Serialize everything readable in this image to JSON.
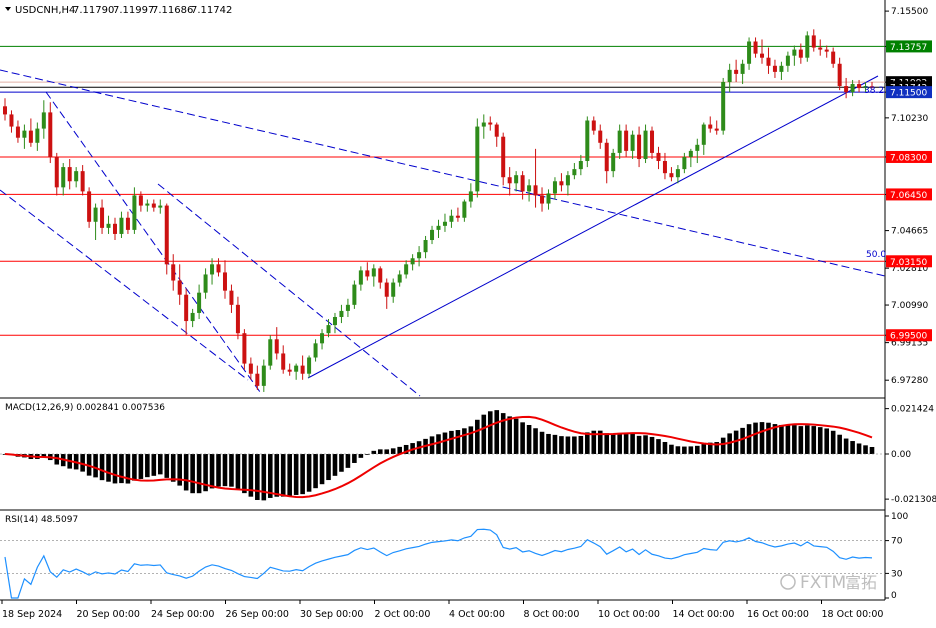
{
  "chart_data": {
    "type": "candlestick",
    "symbol_header": "USDCNH,H4",
    "ohlc_header": [
      "7.11790",
      "7.11997",
      "7.11686",
      "7.11742"
    ],
    "price_axis": {
      "range": [
        6.965,
        7.159
      ],
      "ticks": [
        "7.15500",
        "7.13757",
        "7.11992",
        "7.11500",
        "7.10230",
        "7.08300",
        "7.06450",
        "7.04665",
        "7.03150",
        "7.02810",
        "7.00990",
        "6.99500",
        "6.99135",
        "6.97280"
      ]
    },
    "price_lines": [
      {
        "label": "7.13757",
        "value": 7.13757,
        "color": "#008000",
        "tag_fill": "#008000"
      },
      {
        "label": "7.11992",
        "value": 7.11992,
        "color": "#e0b0a8",
        "tag_fill": "#000000"
      },
      {
        "label": "7.11742",
        "value": 7.11742,
        "color": "#000000",
        "tag_fill": "#000000"
      },
      {
        "label": "7.11500",
        "value": 7.115,
        "color": "#0000cc",
        "tag_fill": "#1030c0"
      },
      {
        "label": "7.08300",
        "value": 7.083,
        "color": "#ff0000",
        "tag_fill": "#ff0000"
      },
      {
        "label": "7.06450",
        "value": 7.0645,
        "color": "#ff0000",
        "tag_fill": "#ff0000"
      },
      {
        "label": "7.03150",
        "value": 7.0315,
        "color": "#ff0000",
        "tag_fill": "#ff0000"
      },
      {
        "label": "6.99500",
        "value": 6.995,
        "color": "#ff0000",
        "tag_fill": "#ff0000"
      }
    ],
    "fib_labels": [
      "38.2",
      "50.0"
    ],
    "time_labels": [
      "18 Sep 2024",
      "20 Sep 00:00",
      "24 Sep 00:00",
      "26 Sep 00:00",
      "30 Sep 00:00",
      "2 Oct 00:00",
      "4 Oct 00:00",
      "8 Oct 00:00",
      "10 Oct 00:00",
      "14 Oct 00:00",
      "16 Oct 00:00",
      "18 Oct 00:00"
    ],
    "candles": [
      {
        "o": 7.108,
        "h": 7.112,
        "l": 7.101,
        "c": 7.104
      },
      {
        "o": 7.104,
        "h": 7.106,
        "l": 7.095,
        "c": 7.098
      },
      {
        "o": 7.098,
        "h": 7.101,
        "l": 7.09,
        "c": 7.0925
      },
      {
        "o": 7.0925,
        "h": 7.099,
        "l": 7.087,
        "c": 7.096
      },
      {
        "o": 7.096,
        "h": 7.102,
        "l": 7.088,
        "c": 7.09
      },
      {
        "o": 7.09,
        "h": 7.1,
        "l": 7.086,
        "c": 7.097
      },
      {
        "o": 7.097,
        "h": 7.111,
        "l": 7.092,
        "c": 7.105
      },
      {
        "o": 7.105,
        "h": 7.11,
        "l": 7.08,
        "c": 7.083
      },
      {
        "o": 7.083,
        "h": 7.085,
        "l": 7.064,
        "c": 7.068
      },
      {
        "o": 7.068,
        "h": 7.08,
        "l": 7.064,
        "c": 7.078
      },
      {
        "o": 7.078,
        "h": 7.082,
        "l": 7.067,
        "c": 7.071
      },
      {
        "o": 7.071,
        "h": 7.078,
        "l": 7.068,
        "c": 7.076
      },
      {
        "o": 7.076,
        "h": 7.079,
        "l": 7.064,
        "c": 7.066
      },
      {
        "o": 7.066,
        "h": 7.068,
        "l": 7.048,
        "c": 7.051
      },
      {
        "o": 7.051,
        "h": 7.06,
        "l": 7.042,
        "c": 7.058
      },
      {
        "o": 7.058,
        "h": 7.062,
        "l": 7.045,
        "c": 7.048
      },
      {
        "o": 7.048,
        "h": 7.054,
        "l": 7.045,
        "c": 7.05
      },
      {
        "o": 7.05,
        "h": 7.053,
        "l": 7.042,
        "c": 7.045
      },
      {
        "o": 7.045,
        "h": 7.056,
        "l": 7.043,
        "c": 7.053
      },
      {
        "o": 7.053,
        "h": 7.056,
        "l": 7.045,
        "c": 7.047
      },
      {
        "o": 7.047,
        "h": 7.068,
        "l": 7.045,
        "c": 7.064
      },
      {
        "o": 7.064,
        "h": 7.066,
        "l": 7.056,
        "c": 7.059
      },
      {
        "o": 7.059,
        "h": 7.062,
        "l": 7.056,
        "c": 7.06
      },
      {
        "o": 7.06,
        "h": 7.062,
        "l": 7.056,
        "c": 7.058
      },
      {
        "o": 7.058,
        "h": 7.062,
        "l": 7.055,
        "c": 7.059
      },
      {
        "o": 7.059,
        "h": 7.06,
        "l": 7.025,
        "c": 7.03
      },
      {
        "o": 7.03,
        "h": 7.035,
        "l": 7.017,
        "c": 7.022
      },
      {
        "o": 7.022,
        "h": 7.03,
        "l": 7.01,
        "c": 7.015
      },
      {
        "o": 7.015,
        "h": 7.018,
        "l": 6.995,
        "c": 7.002
      },
      {
        "o": 7.002,
        "h": 7.008,
        "l": 6.999,
        "c": 7.006
      },
      {
        "o": 7.006,
        "h": 7.02,
        "l": 7.003,
        "c": 7.016
      },
      {
        "o": 7.016,
        "h": 7.028,
        "l": 7.013,
        "c": 7.025
      },
      {
        "o": 7.025,
        "h": 7.033,
        "l": 7.02,
        "c": 7.03
      },
      {
        "o": 7.03,
        "h": 7.033,
        "l": 7.024,
        "c": 7.026
      },
      {
        "o": 7.026,
        "h": 7.032,
        "l": 7.013,
        "c": 7.017
      },
      {
        "o": 7.017,
        "h": 7.02,
        "l": 7.006,
        "c": 7.01
      },
      {
        "o": 7.01,
        "h": 7.014,
        "l": 6.993,
        "c": 6.996
      },
      {
        "o": 6.996,
        "h": 6.998,
        "l": 6.978,
        "c": 6.981
      },
      {
        "o": 6.981,
        "h": 6.984,
        "l": 6.973,
        "c": 6.976
      },
      {
        "o": 6.976,
        "h": 6.98,
        "l": 6.968,
        "c": 6.97
      },
      {
        "o": 6.97,
        "h": 6.983,
        "l": 6.967,
        "c": 6.98
      },
      {
        "o": 6.98,
        "h": 6.995,
        "l": 6.978,
        "c": 6.993
      },
      {
        "o": 6.993,
        "h": 6.999,
        "l": 6.983,
        "c": 6.986
      },
      {
        "o": 6.986,
        "h": 6.99,
        "l": 6.976,
        "c": 6.978
      },
      {
        "o": 6.978,
        "h": 6.981,
        "l": 6.975,
        "c": 6.977
      },
      {
        "o": 6.977,
        "h": 6.981,
        "l": 6.973,
        "c": 6.98
      },
      {
        "o": 6.98,
        "h": 6.985,
        "l": 6.973,
        "c": 6.976
      },
      {
        "o": 6.976,
        "h": 6.985,
        "l": 6.974,
        "c": 6.984
      },
      {
        "o": 6.984,
        "h": 6.993,
        "l": 6.982,
        "c": 6.991
      },
      {
        "o": 6.991,
        "h": 6.998,
        "l": 6.988,
        "c": 6.996
      },
      {
        "o": 6.996,
        "h": 7.003,
        "l": 6.994,
        "c": 7.0
      },
      {
        "o": 7.0,
        "h": 7.006,
        "l": 6.996,
        "c": 7.004
      },
      {
        "o": 7.004,
        "h": 7.01,
        "l": 7.001,
        "c": 7.007
      },
      {
        "o": 7.007,
        "h": 7.013,
        "l": 7.004,
        "c": 7.01
      },
      {
        "o": 7.01,
        "h": 7.022,
        "l": 7.008,
        "c": 7.02
      },
      {
        "o": 7.02,
        "h": 7.029,
        "l": 7.017,
        "c": 7.027
      },
      {
        "o": 7.027,
        "h": 7.031,
        "l": 7.022,
        "c": 7.024
      },
      {
        "o": 7.024,
        "h": 7.03,
        "l": 7.019,
        "c": 7.028
      },
      {
        "o": 7.028,
        "h": 7.029,
        "l": 7.018,
        "c": 7.021
      },
      {
        "o": 7.021,
        "h": 7.023,
        "l": 7.008,
        "c": 7.014
      },
      {
        "o": 7.014,
        "h": 7.023,
        "l": 7.011,
        "c": 7.021
      },
      {
        "o": 7.021,
        "h": 7.027,
        "l": 7.019,
        "c": 7.025
      },
      {
        "o": 7.025,
        "h": 7.032,
        "l": 7.023,
        "c": 7.03
      },
      {
        "o": 7.03,
        "h": 7.035,
        "l": 7.027,
        "c": 7.033
      },
      {
        "o": 7.033,
        "h": 7.039,
        "l": 7.029,
        "c": 7.036
      },
      {
        "o": 7.036,
        "h": 7.044,
        "l": 7.033,
        "c": 7.042
      },
      {
        "o": 7.042,
        "h": 7.049,
        "l": 7.04,
        "c": 7.047
      },
      {
        "o": 7.047,
        "h": 7.052,
        "l": 7.043,
        "c": 7.049
      },
      {
        "o": 7.049,
        "h": 7.055,
        "l": 7.046,
        "c": 7.051
      },
      {
        "o": 7.051,
        "h": 7.057,
        "l": 7.048,
        "c": 7.054
      },
      {
        "o": 7.054,
        "h": 7.058,
        "l": 7.051,
        "c": 7.053
      },
      {
        "o": 7.053,
        "h": 7.062,
        "l": 7.051,
        "c": 7.061
      },
      {
        "o": 7.061,
        "h": 7.07,
        "l": 7.058,
        "c": 7.066
      },
      {
        "o": 7.066,
        "h": 7.102,
        "l": 7.063,
        "c": 7.098
      },
      {
        "o": 7.098,
        "h": 7.104,
        "l": 7.092,
        "c": 7.1
      },
      {
        "o": 7.1,
        "h": 7.103,
        "l": 7.096,
        "c": 7.099
      },
      {
        "o": 7.099,
        "h": 7.1,
        "l": 7.088,
        "c": 7.093
      },
      {
        "o": 7.093,
        "h": 7.095,
        "l": 7.069,
        "c": 7.073
      },
      {
        "o": 7.073,
        "h": 7.078,
        "l": 7.064,
        "c": 7.07
      },
      {
        "o": 7.07,
        "h": 7.076,
        "l": 7.066,
        "c": 7.074
      },
      {
        "o": 7.074,
        "h": 7.076,
        "l": 7.062,
        "c": 7.066
      },
      {
        "o": 7.066,
        "h": 7.072,
        "l": 7.061,
        "c": 7.069
      },
      {
        "o": 7.069,
        "h": 7.087,
        "l": 7.058,
        "c": 7.064
      },
      {
        "o": 7.064,
        "h": 7.068,
        "l": 7.056,
        "c": 7.06
      },
      {
        "o": 7.06,
        "h": 7.067,
        "l": 7.057,
        "c": 7.065
      },
      {
        "o": 7.065,
        "h": 7.073,
        "l": 7.062,
        "c": 7.071
      },
      {
        "o": 7.071,
        "h": 7.075,
        "l": 7.066,
        "c": 7.069
      },
      {
        "o": 7.069,
        "h": 7.076,
        "l": 7.064,
        "c": 7.074
      },
      {
        "o": 7.074,
        "h": 7.08,
        "l": 7.072,
        "c": 7.077
      },
      {
        "o": 7.077,
        "h": 7.084,
        "l": 7.074,
        "c": 7.081
      },
      {
        "o": 7.081,
        "h": 7.103,
        "l": 7.078,
        "c": 7.101
      },
      {
        "o": 7.101,
        "h": 7.103,
        "l": 7.094,
        "c": 7.096
      },
      {
        "o": 7.096,
        "h": 7.099,
        "l": 7.087,
        "c": 7.09
      },
      {
        "o": 7.09,
        "h": 7.092,
        "l": 7.07,
        "c": 7.076
      },
      {
        "o": 7.076,
        "h": 7.087,
        "l": 7.073,
        "c": 7.085
      },
      {
        "o": 7.085,
        "h": 7.099,
        "l": 7.082,
        "c": 7.096
      },
      {
        "o": 7.096,
        "h": 7.099,
        "l": 7.083,
        "c": 7.086
      },
      {
        "o": 7.086,
        "h": 7.096,
        "l": 7.082,
        "c": 7.094
      },
      {
        "o": 7.094,
        "h": 7.098,
        "l": 7.078,
        "c": 7.082
      },
      {
        "o": 7.082,
        "h": 7.099,
        "l": 7.08,
        "c": 7.096
      },
      {
        "o": 7.096,
        "h": 7.098,
        "l": 7.082,
        "c": 7.085
      },
      {
        "o": 7.085,
        "h": 7.088,
        "l": 7.077,
        "c": 7.081
      },
      {
        "o": 7.081,
        "h": 7.085,
        "l": 7.072,
        "c": 7.075
      },
      {
        "o": 7.075,
        "h": 7.078,
        "l": 7.071,
        "c": 7.073
      },
      {
        "o": 7.073,
        "h": 7.079,
        "l": 7.07,
        "c": 7.077
      },
      {
        "o": 7.077,
        "h": 7.085,
        "l": 7.075,
        "c": 7.083
      },
      {
        "o": 7.083,
        "h": 7.087,
        "l": 7.078,
        "c": 7.086
      },
      {
        "o": 7.086,
        "h": 7.092,
        "l": 7.08,
        "c": 7.089
      },
      {
        "o": 7.089,
        "h": 7.1,
        "l": 7.084,
        "c": 7.099
      },
      {
        "o": 7.099,
        "h": 7.103,
        "l": 7.095,
        "c": 7.097
      },
      {
        "o": 7.097,
        "h": 7.101,
        "l": 7.094,
        "c": 7.096
      },
      {
        "o": 7.096,
        "h": 7.122,
        "l": 7.094,
        "c": 7.12
      },
      {
        "o": 7.12,
        "h": 7.129,
        "l": 7.115,
        "c": 7.126
      },
      {
        "o": 7.126,
        "h": 7.131,
        "l": 7.12,
        "c": 7.124
      },
      {
        "o": 7.124,
        "h": 7.131,
        "l": 7.119,
        "c": 7.129
      },
      {
        "o": 7.129,
        "h": 7.142,
        "l": 7.126,
        "c": 7.14
      },
      {
        "o": 7.14,
        "h": 7.142,
        "l": 7.132,
        "c": 7.134
      },
      {
        "o": 7.134,
        "h": 7.141,
        "l": 7.129,
        "c": 7.132
      },
      {
        "o": 7.132,
        "h": 7.137,
        "l": 7.124,
        "c": 7.128
      },
      {
        "o": 7.128,
        "h": 7.131,
        "l": 7.122,
        "c": 7.125
      },
      {
        "o": 7.125,
        "h": 7.13,
        "l": 7.121,
        "c": 7.128
      },
      {
        "o": 7.128,
        "h": 7.135,
        "l": 7.125,
        "c": 7.133
      },
      {
        "o": 7.133,
        "h": 7.138,
        "l": 7.128,
        "c": 7.136
      },
      {
        "o": 7.136,
        "h": 7.139,
        "l": 7.129,
        "c": 7.132
      },
      {
        "o": 7.132,
        "h": 7.145,
        "l": 7.13,
        "c": 7.143
      },
      {
        "o": 7.143,
        "h": 7.146,
        "l": 7.135,
        "c": 7.137
      },
      {
        "o": 7.137,
        "h": 7.141,
        "l": 7.133,
        "c": 7.136
      },
      {
        "o": 7.136,
        "h": 7.138,
        "l": 7.132,
        "c": 7.135
      },
      {
        "o": 7.135,
        "h": 7.137,
        "l": 7.127,
        "c": 7.129
      },
      {
        "o": 7.129,
        "h": 7.132,
        "l": 7.116,
        "c": 7.118
      },
      {
        "o": 7.118,
        "h": 7.122,
        "l": 7.112,
        "c": 7.115
      },
      {
        "o": 7.115,
        "h": 7.121,
        "l": 7.113,
        "c": 7.119
      },
      {
        "o": 7.119,
        "h": 7.121,
        "l": 7.115,
        "c": 7.117
      },
      {
        "o": 7.117,
        "h": 7.12,
        "l": 7.115,
        "c": 7.118
      },
      {
        "o": 7.1179,
        "h": 7.12,
        "l": 7.1169,
        "c": 7.1174
      }
    ],
    "macd": {
      "label": "MACD(12,26,9) 0.002841 0.007536",
      "range": [
        -0.0255,
        0.0255
      ],
      "ticks": [
        "0.021424",
        "0.00",
        "-0.021308"
      ]
    },
    "rsi": {
      "label": "RSI(14) 48.5097",
      "range": [
        0,
        100
      ],
      "levels": [
        70,
        30
      ],
      "ticks": [
        "100",
        "70",
        "30",
        "0"
      ]
    },
    "colors": {
      "bull": "#2e8b1a",
      "bear": "#cc1111",
      "macd_hist": "#000000",
      "macd_signal": "#ee0000",
      "rsi_line": "#1e90ff",
      "trend_line": "#0000cc"
    }
  },
  "watermark": {
    "brand": "FXTM",
    "chinese": "富拓"
  }
}
